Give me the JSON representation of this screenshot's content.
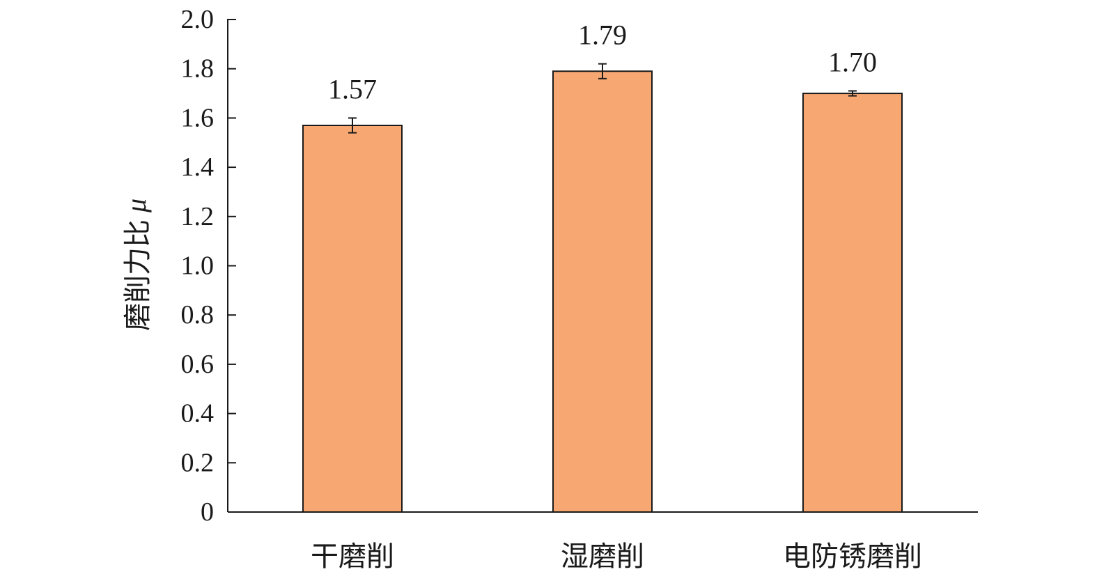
{
  "chart_data": {
    "type": "bar",
    "categories": [
      "干磨削",
      "湿磨削",
      "电防锈磨削"
    ],
    "values": [
      1.57,
      1.79,
      1.7
    ],
    "errors": [
      0.03,
      0.03,
      0.01
    ],
    "data_labels": [
      "1.57",
      "1.79",
      "1.70"
    ],
    "title": "",
    "xlabel": "",
    "ylabel": "磨削力比",
    "ylabel_symbol": "μ",
    "ylim": [
      0,
      2.0
    ],
    "yticks": [
      0,
      0.2,
      0.4,
      0.6,
      0.8,
      1.0,
      1.2,
      1.4,
      1.6,
      1.8,
      2.0
    ],
    "ytick_labels": [
      "0",
      "0.2",
      "0.4",
      "0.6",
      "0.8",
      "1.0",
      "1.2",
      "1.4",
      "1.6",
      "1.8",
      "2.0"
    ],
    "grid": false,
    "legend": "none",
    "bar_color": "#F7A872",
    "bar_edge_color": "#1a1a1a"
  }
}
